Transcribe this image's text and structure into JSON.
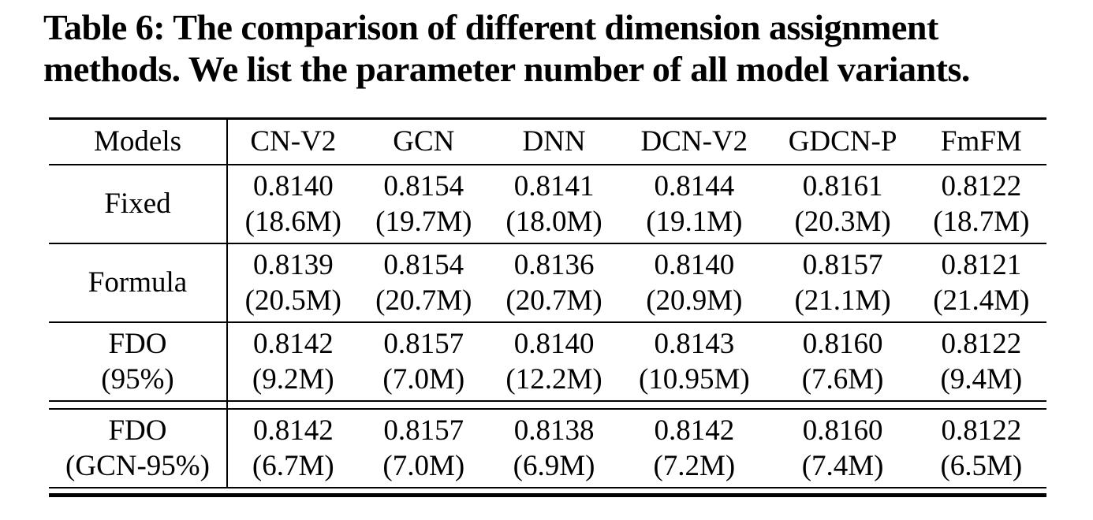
{
  "title": {
    "line1": "Table 6: The comparison of different dimension assignment",
    "line2": "methods. We list the parameter number of all model variants."
  },
  "table": {
    "corner_label": "Models",
    "columns": [
      "CN-V2",
      "GCN",
      "DNN",
      "DCN-V2",
      "GDCN-P",
      "FmFM"
    ],
    "rows": [
      {
        "label_lines": [
          "Fixed"
        ],
        "cells": [
          {
            "auc": "0.8140",
            "params": "(18.6M)"
          },
          {
            "auc": "0.8154",
            "params": "(19.7M)"
          },
          {
            "auc": "0.8141",
            "params": "(18.0M)"
          },
          {
            "auc": "0.8144",
            "params": "(19.1M)"
          },
          {
            "auc": "0.8161",
            "params": "(20.3M)"
          },
          {
            "auc": "0.8122",
            "params": "(18.7M)"
          }
        ]
      },
      {
        "label_lines": [
          "Formula"
        ],
        "cells": [
          {
            "auc": "0.8139",
            "params": "(20.5M)"
          },
          {
            "auc": "0.8154",
            "params": "(20.7M)"
          },
          {
            "auc": "0.8136",
            "params": "(20.7M)"
          },
          {
            "auc": "0.8140",
            "params": "(20.9M)"
          },
          {
            "auc": "0.8157",
            "params": "(21.1M)"
          },
          {
            "auc": "0.8121",
            "params": "(21.4M)"
          }
        ]
      },
      {
        "label_lines": [
          "FDO",
          "(95%)"
        ],
        "cells": [
          {
            "auc": "0.8142",
            "params": "(9.2M)"
          },
          {
            "auc": "0.8157",
            "params": "(7.0M)"
          },
          {
            "auc": "0.8140",
            "params": "(12.2M)"
          },
          {
            "auc": "0.8143",
            "params": "(10.95M)"
          },
          {
            "auc": "0.8160",
            "params": "(7.6M)"
          },
          {
            "auc": "0.8122",
            "params": "(9.4M)"
          }
        ]
      },
      {
        "label_lines": [
          "FDO",
          "(GCN-95%)"
        ],
        "cells": [
          {
            "auc": "0.8142",
            "params": "(6.7M)"
          },
          {
            "auc": "0.8157",
            "params": "(7.0M)"
          },
          {
            "auc": "0.8138",
            "params": "(6.9M)"
          },
          {
            "auc": "0.8142",
            "params": "(7.2M)"
          },
          {
            "auc": "0.8160",
            "params": "(7.4M)"
          },
          {
            "auc": "0.8122",
            "params": "(6.5M)"
          }
        ]
      }
    ]
  }
}
